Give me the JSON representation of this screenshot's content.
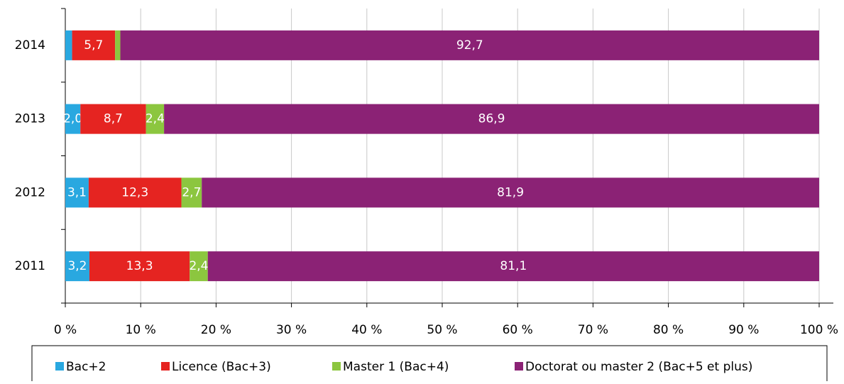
{
  "chart_data": {
    "type": "stacked-bar-horizontal",
    "categories": [
      "2014",
      "2013",
      "2012",
      "2011"
    ],
    "series": [
      {
        "name": "Bac+2",
        "color": "#29a8e0",
        "values": [
          0.9,
          2.0,
          3.1,
          3.2
        ],
        "value_labels": [
          "0,9",
          "2,0",
          "3,1",
          "3,2"
        ]
      },
      {
        "name": "Licence (Bac+3)",
        "color": "#e52421",
        "values": [
          5.7,
          8.7,
          12.3,
          13.3
        ],
        "value_labels": [
          "5,7",
          "8,7",
          "12,3",
          "13,3"
        ]
      },
      {
        "name": "Master 1 (Bac+4)",
        "color": "#8cc63f",
        "values": [
          0.7,
          2.4,
          2.7,
          2.4
        ],
        "value_labels": [
          "0,7",
          "2,4",
          "2,7",
          "2,4"
        ]
      },
      {
        "name": "Doctorat ou master 2 (Bac+5 et plus)",
        "color": "#8b2275",
        "values": [
          92.7,
          86.9,
          81.9,
          81.1
        ],
        "value_labels": [
          "92,7",
          "86,9",
          "81,9",
          "81,1"
        ]
      }
    ],
    "xlim": [
      0,
      100
    ],
    "xticks": [
      {
        "value": 0,
        "label": "0 %"
      },
      {
        "value": 10,
        "label": "10 %"
      },
      {
        "value": 20,
        "label": "20 %"
      },
      {
        "value": 30,
        "label": "30 %"
      },
      {
        "value": 40,
        "label": "40 %"
      },
      {
        "value": 50,
        "label": "50 %"
      },
      {
        "value": 60,
        "label": "60 %"
      },
      {
        "value": 70,
        "label": "70 %"
      },
      {
        "value": 80,
        "label": "80 %"
      },
      {
        "value": 90,
        "label": "90 %"
      },
      {
        "value": 100,
        "label": "100 %"
      }
    ],
    "grid": true,
    "legend": "bottom"
  }
}
